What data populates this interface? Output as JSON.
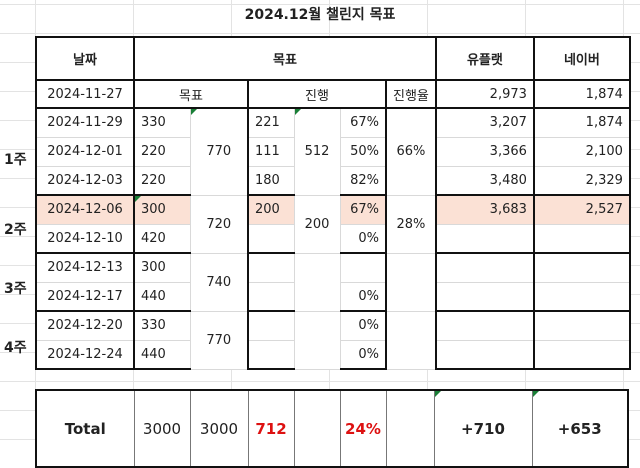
{
  "title": "2024.12월 챌린지 목표",
  "header": {
    "date": "날짜",
    "goal": "목표",
    "uplat": "유플랫",
    "naver": "네이버"
  },
  "sub": {
    "date": "2024-11-27",
    "goal": "목표",
    "progress": "진행",
    "rate": "진행율",
    "uplat": "2,973",
    "naver": "1,874"
  },
  "weeks": [
    "1주",
    "2주",
    "3주",
    "4주"
  ],
  "rows": [
    {
      "date": "2024-11-29",
      "goal": "330",
      "progress": "221",
      "pct": "67%",
      "uplat": "3,207",
      "naver": "1,874"
    },
    {
      "date": "2024-12-01",
      "goal": "220",
      "progress": "111",
      "pct": "50%",
      "uplat": "3,366",
      "naver": "2,100"
    },
    {
      "date": "2024-12-03",
      "goal": "220",
      "progress": "180",
      "pct": "82%",
      "uplat": "3,480",
      "naver": "2,329"
    },
    {
      "date": "2024-12-06",
      "goal": "300",
      "progress": "200",
      "pct": "67%",
      "uplat": "3,683",
      "naver": "2,527"
    },
    {
      "date": "2024-12-10",
      "goal": "420",
      "progress": "",
      "pct": "0%",
      "uplat": "",
      "naver": ""
    },
    {
      "date": "2024-12-13",
      "goal": "300",
      "progress": "",
      "pct": "",
      "uplat": "",
      "naver": ""
    },
    {
      "date": "2024-12-17",
      "goal": "440",
      "progress": "",
      "pct": "0%",
      "uplat": "",
      "naver": ""
    },
    {
      "date": "2024-12-20",
      "goal": "330",
      "progress": "",
      "pct": "0%",
      "uplat": "",
      "naver": ""
    },
    {
      "date": "2024-12-24",
      "goal": "440",
      "progress": "",
      "pct": "0%",
      "uplat": "",
      "naver": ""
    }
  ],
  "week_totals": [
    {
      "goal": "770",
      "progress": "512",
      "rate": "66%"
    },
    {
      "goal": "720",
      "progress": "200",
      "rate": "28%"
    },
    {
      "goal": "740"
    },
    {
      "goal": "770"
    }
  ],
  "total": {
    "label": "Total",
    "goal_a": "3000",
    "goal_b": "3000",
    "progress": "712",
    "pct": "24%",
    "uplat": "+710",
    "naver": "+653"
  },
  "colors": {
    "highlight": "#fbe1d5",
    "red": "#dd1111",
    "marker": "#1a7f37"
  }
}
